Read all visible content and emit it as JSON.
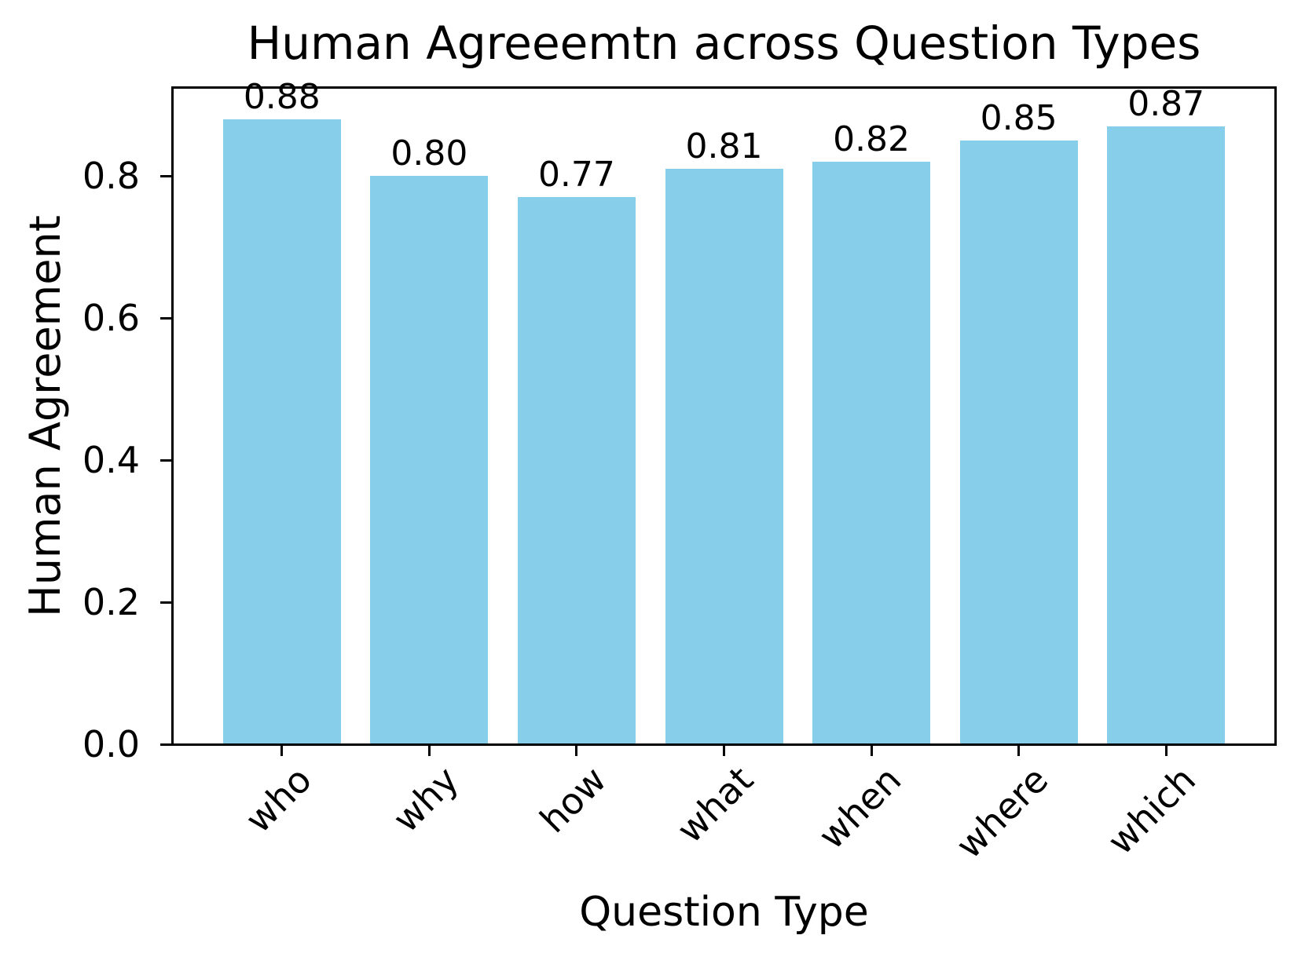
{
  "chart_data": {
    "type": "bar",
    "title": "Human Agreeemtn across Question Types",
    "xlabel": "Question Type",
    "ylabel": "Human Agreement",
    "categories": [
      "who",
      "why",
      "how",
      "what",
      "when",
      "where",
      "which"
    ],
    "values": [
      0.88,
      0.8,
      0.77,
      0.81,
      0.82,
      0.85,
      0.87
    ],
    "bar_labels": [
      "0.88",
      "0.80",
      "0.77",
      "0.81",
      "0.82",
      "0.85",
      "0.87"
    ],
    "y_tick_labels": [
      "0.0",
      "0.2",
      "0.4",
      "0.6",
      "0.8"
    ],
    "y_tick_values": [
      0.0,
      0.2,
      0.4,
      0.6,
      0.8
    ],
    "ylim": [
      0,
      0.924
    ],
    "bar_color": "#87CEEB",
    "text_color": "#000000",
    "background_color": "#ffffff",
    "grid": false,
    "legend_position": "none",
    "x_tick_rotation_deg": 45
  }
}
